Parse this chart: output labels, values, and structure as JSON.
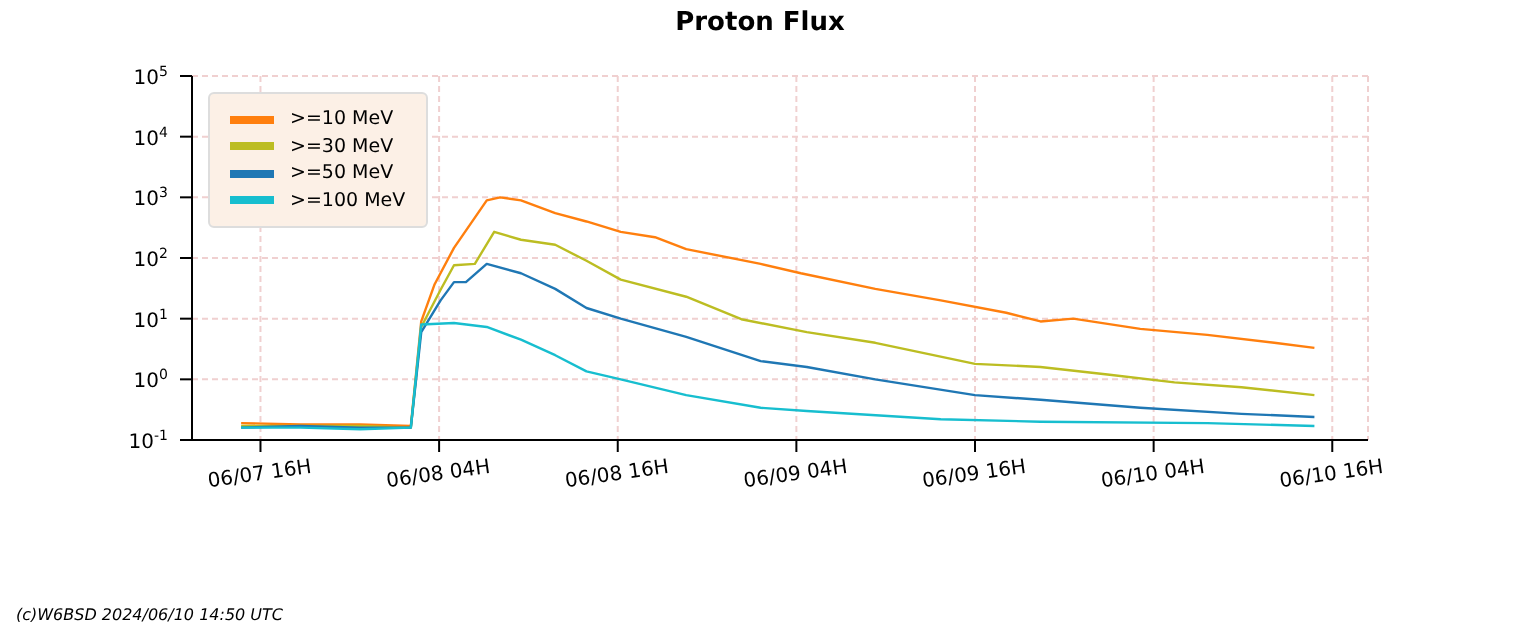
{
  "chart_data": {
    "type": "line",
    "title": "Proton Flux",
    "annotations": [
      "(c)W6BSD 2024/06/10 14:50 UTC"
    ],
    "xlim": [
      "2024-06-07T11:24",
      "2024-06-10T18:24"
    ],
    "xticks": [
      {
        "value": "2024-06-07T16:00",
        "label": "06/07 16H"
      },
      {
        "value": "2024-06-08T04:00",
        "label": "06/08 04H"
      },
      {
        "value": "2024-06-08T16:00",
        "label": "06/08 16H"
      },
      {
        "value": "2024-06-09T04:00",
        "label": "06/09 04H"
      },
      {
        "value": "2024-06-09T16:00",
        "label": "06/09 16H"
      },
      {
        "value": "2024-06-10T04:00",
        "label": "06/10 04H"
      },
      {
        "value": "2024-06-10T16:00",
        "label": "06/10 16H"
      }
    ],
    "ylim": [
      0.1,
      100000
    ],
    "yticks": [
      {
        "value": 0.1,
        "label": "10$^{-1}$"
      },
      {
        "value": 1,
        "label": "10$^{0}$"
      },
      {
        "value": 10,
        "label": "10$^{1}$"
      },
      {
        "value": 100,
        "label": "10$^{2}$"
      },
      {
        "value": 1000,
        "label": "10$^{3}$"
      },
      {
        "value": 10000,
        "label": "10$^{4}$"
      },
      {
        "value": 100000,
        "label": "10$^{5}$"
      }
    ],
    "log": "y",
    "grid": true,
    "legend": "top left",
    "marker": "none",
    "line_style": "solid",
    "series": [
      {
        "name": ">=10 MeV",
        "color": "#ff7f0e",
        "x": [
          "2024-06-07T14:42",
          "2024-06-07T18:42",
          "2024-06-07T22:42",
          "2024-06-08T02:06",
          "2024-06-08T02:48",
          "2024-06-08T03:42",
          "2024-06-08T05:00",
          "2024-06-08T07:12",
          "2024-06-08T08:06",
          "2024-06-08T09:30",
          "2024-06-08T11:48",
          "2024-06-08T13:54",
          "2024-06-08T16:12",
          "2024-06-08T18:30",
          "2024-06-08T20:36",
          "2024-06-09T01:36",
          "2024-06-09T04:18",
          "2024-06-09T09:18",
          "2024-06-09T13:42",
          "2024-06-09T18:06",
          "2024-06-09T20:24",
          "2024-06-09T22:36",
          "2024-06-10T03:06",
          "2024-06-10T07:36",
          "2024-06-10T12:06",
          "2024-06-10T14:48"
        ],
        "values": [
          0.19,
          0.18,
          0.18,
          0.17,
          9,
          37,
          147,
          890,
          1000,
          890,
          550,
          400,
          270,
          220,
          140,
          80,
          56,
          31,
          20,
          12.5,
          9,
          10,
          6.8,
          5.4,
          4,
          3.3
        ]
      },
      {
        "name": ">=30 MeV",
        "color": "#bcbd22",
        "x": [
          "2024-06-07T14:42",
          "2024-06-07T18:42",
          "2024-06-07T22:42",
          "2024-06-08T02:06",
          "2024-06-08T02:48",
          "2024-06-08T04:06",
          "2024-06-08T05:00",
          "2024-06-08T06:24",
          "2024-06-08T07:42",
          "2024-06-08T09:30",
          "2024-06-08T11:48",
          "2024-06-08T13:54",
          "2024-06-08T16:12",
          "2024-06-08T20:36",
          "2024-06-09T00:18",
          "2024-06-09T04:42",
          "2024-06-09T09:18",
          "2024-06-09T16:00",
          "2024-06-09T20:24",
          "2024-06-10T00:54",
          "2024-06-10T05:24",
          "2024-06-10T09:54",
          "2024-06-10T14:48"
        ],
        "values": [
          0.17,
          0.17,
          0.17,
          0.16,
          7.3,
          30,
          76,
          80,
          270,
          200,
          165,
          90,
          44,
          23,
          9.8,
          6,
          4,
          1.8,
          1.6,
          1.2,
          0.89,
          0.74,
          0.55
        ]
      },
      {
        "name": ">=50 MeV",
        "color": "#1f77b4",
        "x": [
          "2024-06-07T14:42",
          "2024-06-07T18:42",
          "2024-06-07T22:42",
          "2024-06-08T02:06",
          "2024-06-08T02:48",
          "2024-06-08T04:06",
          "2024-06-08T05:00",
          "2024-06-08T05:48",
          "2024-06-08T07:12",
          "2024-06-08T09:30",
          "2024-06-08T11:48",
          "2024-06-08T13:54",
          "2024-06-08T16:12",
          "2024-06-08T20:36",
          "2024-06-09T01:36",
          "2024-06-09T04:42",
          "2024-06-09T09:18",
          "2024-06-09T16:00",
          "2024-06-09T20:24",
          "2024-06-10T03:06",
          "2024-06-10T09:54",
          "2024-06-10T14:48"
        ],
        "values": [
          0.16,
          0.17,
          0.16,
          0.16,
          6,
          20,
          40,
          40,
          80,
          56,
          31,
          15,
          10,
          5,
          2,
          1.6,
          1,
          0.55,
          0.46,
          0.34,
          0.27,
          0.24
        ]
      },
      {
        "name": ">=100 MeV",
        "color": "#17becf",
        "x": [
          "2024-06-07T14:42",
          "2024-06-07T18:42",
          "2024-06-07T22:42",
          "2024-06-08T02:06",
          "2024-06-08T02:48",
          "2024-06-08T05:00",
          "2024-06-08T07:12",
          "2024-06-08T09:30",
          "2024-06-08T11:48",
          "2024-06-08T13:54",
          "2024-06-08T16:12",
          "2024-06-08T20:36",
          "2024-06-09T01:36",
          "2024-06-09T04:42",
          "2024-06-09T13:42",
          "2024-06-09T20:24",
          "2024-06-10T07:36",
          "2024-06-10T14:48"
        ],
        "values": [
          0.16,
          0.16,
          0.15,
          0.16,
          8,
          8.5,
          7.3,
          4.5,
          2.5,
          1.35,
          1.0,
          0.55,
          0.34,
          0.3,
          0.22,
          0.2,
          0.19,
          0.17
        ]
      }
    ]
  }
}
